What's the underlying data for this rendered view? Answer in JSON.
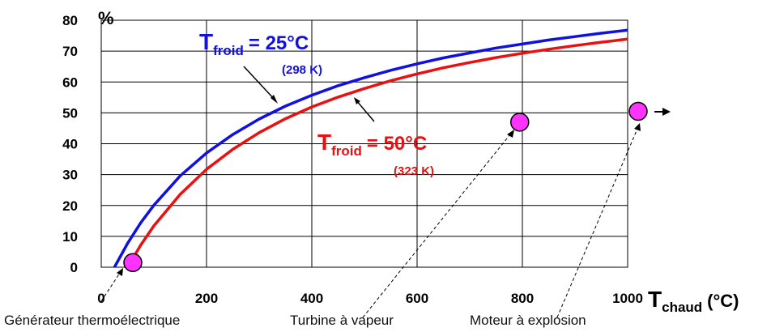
{
  "chart_data": {
    "type": "line",
    "xlabel": "T",
    "xlabel_sub": "chaud",
    "xlabel_unit": "(°C)",
    "ylabel": "%",
    "xlim": [
      0,
      1000
    ],
    "ylim": [
      0,
      80
    ],
    "xticks": [
      0,
      200,
      400,
      600,
      800,
      1000
    ],
    "yticks": [
      0,
      10,
      20,
      30,
      40,
      50,
      60,
      70,
      80
    ],
    "grid": true,
    "series": [
      {
        "name": "Tfroid = 25°C (298 K)",
        "color": "#1010e0",
        "x": [
          25,
          50,
          75,
          100,
          150,
          200,
          250,
          300,
          350,
          400,
          450,
          500,
          550,
          600,
          650,
          700,
          750,
          800,
          850,
          900,
          950,
          1000
        ],
        "y": [
          0,
          7.7,
          14.4,
          20.1,
          29.6,
          37.0,
          43.0,
          48.0,
          52.2,
          55.7,
          58.8,
          61.4,
          63.8,
          65.9,
          67.8,
          69.4,
          71.0,
          72.3,
          73.6,
          74.7,
          75.8,
          76.8
        ]
      },
      {
        "name": "Tfroid = 50°C (323 K)",
        "color": "#e81010",
        "x": [
          50,
          75,
          100,
          150,
          200,
          250,
          300,
          350,
          400,
          450,
          500,
          550,
          600,
          650,
          700,
          750,
          800,
          850,
          900,
          950,
          1000
        ],
        "y": [
          0,
          7.2,
          13.4,
          23.6,
          31.7,
          38.2,
          43.6,
          48.1,
          51.9,
          55.1,
          57.9,
          60.4,
          62.6,
          64.6,
          66.3,
          67.9,
          69.3,
          70.6,
          71.8,
          72.9,
          73.9
        ]
      }
    ],
    "points": [
      {
        "label": "Générateur thermoélectrique",
        "x": 60,
        "y": 1.5,
        "color": "#ff33ff"
      },
      {
        "label": "Turbine à vapeur",
        "x": 795,
        "y": 47,
        "color": "#ff33ff"
      },
      {
        "label": "Moteur à explosion",
        "x": 1020,
        "y": 50.5,
        "color": "#ff33ff"
      }
    ],
    "annotations": [
      {
        "main": "T",
        "sub": "froid",
        "value": "= 25°C",
        "kelvin": "(298 K)",
        "color": "#1010e0"
      },
      {
        "main": "T",
        "sub": "froid",
        "value": "= 50°C",
        "kelvin": "(323 K)",
        "color": "#e81010"
      }
    ]
  }
}
